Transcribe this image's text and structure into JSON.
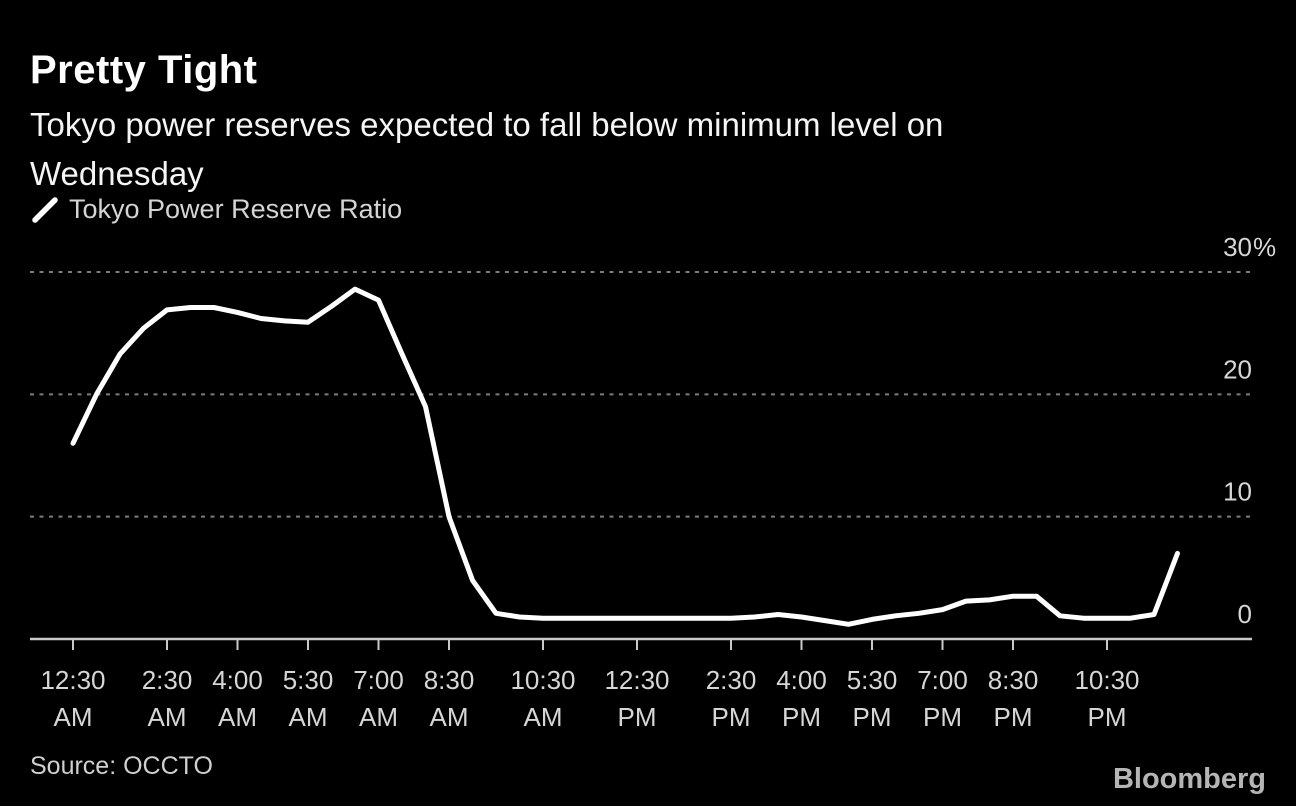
{
  "header": {
    "title": "Pretty Tight",
    "subtitle_line1": "Tokyo power reserves expected to fall below minimum level on",
    "subtitle_line2": "Wednesday"
  },
  "footer": {
    "source": "Source: OCCTO",
    "logo": "Bloomberg"
  },
  "colors": {
    "background": "#000000",
    "line": "#ffffff",
    "grid": "#7d7d7d",
    "axis": "#c9c9c9",
    "label_text": "#d6d6d6"
  },
  "chart_data": {
    "type": "line",
    "title": "Pretty Tight",
    "subtitle": "Tokyo power reserves expected to fall below minimum level on Wednesday",
    "unit": "%",
    "ylim": [
      0,
      30
    ],
    "grid": "horizontal dotted at 10, 20, 30",
    "legend_position": "top-left",
    "y_ticks": [
      {
        "label": "30",
        "suffix": "%",
        "value": 30
      },
      {
        "label": "20",
        "value": 20
      },
      {
        "label": "10",
        "value": 10
      },
      {
        "label": "0",
        "value": 0
      }
    ],
    "x_ticks": [
      {
        "time": "12:30",
        "period": "AM",
        "hour": 0.5
      },
      {
        "time": "2:30",
        "period": "AM",
        "hour": 2.5
      },
      {
        "time": "4:00",
        "period": "AM",
        "hour": 4
      },
      {
        "time": "5:30",
        "period": "AM",
        "hour": 5.5
      },
      {
        "time": "7:00",
        "period": "AM",
        "hour": 7
      },
      {
        "time": "8:30",
        "period": "AM",
        "hour": 8.5
      },
      {
        "time": "10:30",
        "period": "AM",
        "hour": 10.5
      },
      {
        "time": "12:30",
        "period": "PM",
        "hour": 12.5
      },
      {
        "time": "2:30",
        "period": "PM",
        "hour": 14.5
      },
      {
        "time": "4:00",
        "period": "PM",
        "hour": 16
      },
      {
        "time": "5:30",
        "period": "PM",
        "hour": 17.5
      },
      {
        "time": "7:00",
        "period": "PM",
        "hour": 19
      },
      {
        "time": "8:30",
        "period": "PM",
        "hour": 20.5
      },
      {
        "time": "10:30",
        "period": "PM",
        "hour": 22.5
      }
    ],
    "series": [
      {
        "name": "Tokyo Power Reserve Ratio",
        "color": "#ffffff",
        "points": [
          [
            0.5,
            16.0
          ],
          [
            1.0,
            20.0
          ],
          [
            1.5,
            23.3
          ],
          [
            2.0,
            25.4
          ],
          [
            2.5,
            26.9
          ],
          [
            3.0,
            27.1
          ],
          [
            3.5,
            27.1
          ],
          [
            4.0,
            26.7
          ],
          [
            4.5,
            26.2
          ],
          [
            5.0,
            26.0
          ],
          [
            5.5,
            25.9
          ],
          [
            6.0,
            27.2
          ],
          [
            6.5,
            28.6
          ],
          [
            7.0,
            27.7
          ],
          [
            7.5,
            23.3
          ],
          [
            8.0,
            19.0
          ],
          [
            8.5,
            10.0
          ],
          [
            9.0,
            4.8
          ],
          [
            9.5,
            2.1
          ],
          [
            10.0,
            1.8
          ],
          [
            10.5,
            1.7
          ],
          [
            11.0,
            1.7
          ],
          [
            11.5,
            1.7
          ],
          [
            12.0,
            1.7
          ],
          [
            12.5,
            1.7
          ],
          [
            13.0,
            1.7
          ],
          [
            13.5,
            1.7
          ],
          [
            14.0,
            1.7
          ],
          [
            14.5,
            1.7
          ],
          [
            15.0,
            1.8
          ],
          [
            15.5,
            2.0
          ],
          [
            16.0,
            1.8
          ],
          [
            16.5,
            1.5
          ],
          [
            17.0,
            1.2
          ],
          [
            17.5,
            1.6
          ],
          [
            18.0,
            1.9
          ],
          [
            18.5,
            2.1
          ],
          [
            19.0,
            2.4
          ],
          [
            19.5,
            3.1
          ],
          [
            20.0,
            3.2
          ],
          [
            20.5,
            3.5
          ],
          [
            21.0,
            3.5
          ],
          [
            21.5,
            1.9
          ],
          [
            22.0,
            1.7
          ],
          [
            22.5,
            1.7
          ],
          [
            23.0,
            1.7
          ],
          [
            23.5,
            2.0
          ],
          [
            24.0,
            7.0
          ]
        ]
      }
    ]
  }
}
